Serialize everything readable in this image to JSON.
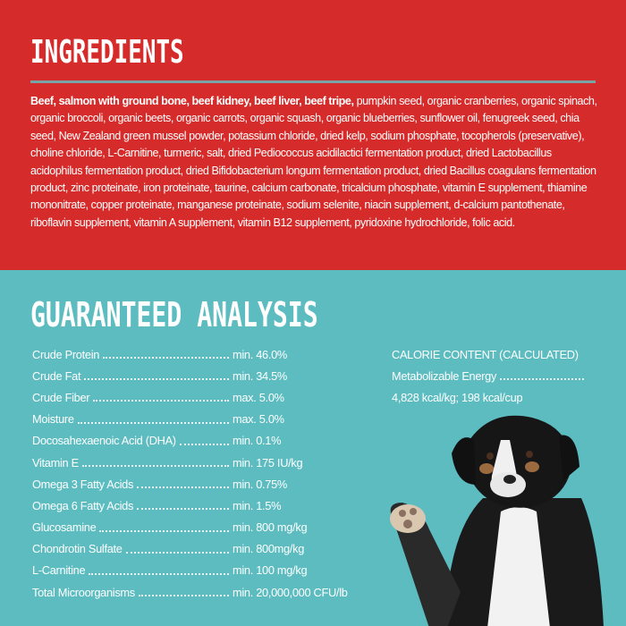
{
  "ingredients": {
    "title": "INGREDIENTS",
    "bold": "Beef, salmon with ground bone, beef kidney, beef liver, beef tripe,",
    "text": "pumpkin seed, organic cranberries, organic spinach, organic broccoli, organic beets, organic carrots, organic squash, organic blueberries, sunflower oil, fenugreek seed, chia seed, New Zealand green mussel powder, potassium chloride, dried kelp, sodium phosphate, tocopherols (preservative), choline chloride, L-Carnitine, turmeric, salt, dried Pediococcus acidilactici fermentation product, dried Lactobacillus acidophilus fermentation product, dried Bifidobacterium longum fermentation product, dried Bacillus coagulans fermentation product, zinc proteinate, iron proteinate, taurine, calcium carbonate, tricalcium phosphate, vitamin E supplement, thiamine mononitrate, copper proteinate, manganese proteinate, sodium selenite, niacin supplement, d-calcium pantothenate, riboflavin supplement, vitamin A supplement, vitamin B12 supplement, pyridoxine hydrochloride, folic acid."
  },
  "analysis": {
    "title": "GUARANTEED ANALYSIS",
    "rows": [
      {
        "name": "Crude Protein",
        "value": "min. 46.0%"
      },
      {
        "name": "Crude Fat",
        "value": "min. 34.5%"
      },
      {
        "name": "Crude Fiber",
        "value": "max. 5.0%"
      },
      {
        "name": "Moisture",
        "value": "max. 5.0%"
      },
      {
        "name": "Docosahexaenoic Acid (DHA)",
        "value": "min. 0.1%"
      },
      {
        "name": "Vitamin E",
        "value": "min. 175 IU/kg"
      },
      {
        "name": "Omega 3 Fatty Acids",
        "value": "min. 0.75%"
      },
      {
        "name": "Omega 6 Fatty Acids",
        "value": "min. 1.5%"
      },
      {
        "name": "Glucosamine",
        "value": "min. 800 mg/kg"
      },
      {
        "name": "Chondrotin Sulfate",
        "value": "min. 800mg/kg"
      },
      {
        "name": "L-Carnitine",
        "value": "min. 100 mg/kg"
      },
      {
        "name": "Total Microorganisms",
        "value": "min. 20,000,000 CFU/lb"
      }
    ]
  },
  "calorie": {
    "heading": "CALORIE CONTENT (CALCULATED)",
    "label": "Metabolizable Energy",
    "value": "4,828 kcal/kg; 198 kcal/cup"
  }
}
